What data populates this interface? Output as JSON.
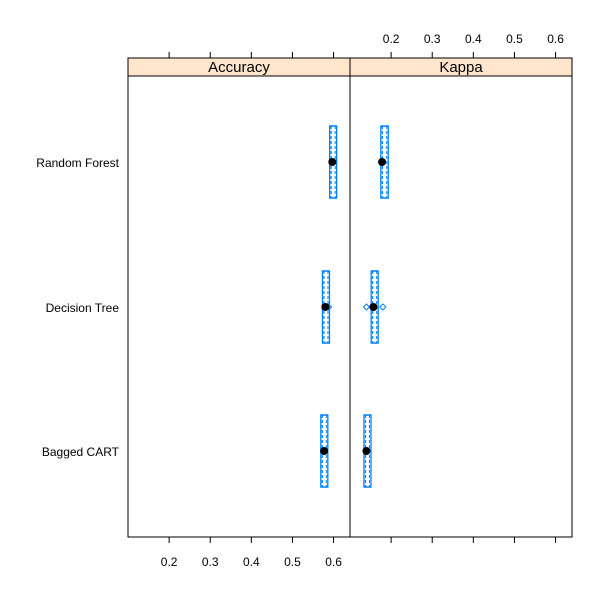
{
  "chart_data": {
    "type": "box-whisker-panels",
    "panels": [
      "Accuracy",
      "Kappa"
    ],
    "categories": [
      "Random Forest",
      "Decision Tree",
      "Bagged CART"
    ],
    "x_ticks": [
      0.2,
      0.3,
      0.4,
      0.5,
      0.6
    ],
    "xlim": [
      0.1,
      0.64
    ],
    "grid": false,
    "strip_color": "#FFE5CC",
    "box_color": "#0080FF",
    "median_color": "#000000",
    "data": {
      "Accuracy": {
        "Random Forest": {
          "whisker_low": 0.595,
          "q1": 0.595,
          "median": 0.597,
          "q3": 0.603,
          "whisker_high": 0.603,
          "outliers": []
        },
        "Decision Tree": {
          "whisker_low": 0.578,
          "q1": 0.578,
          "median": 0.58,
          "q3": 0.585,
          "whisker_high": 0.585,
          "outliers": [
            0.588
          ]
        },
        "Bagged CART": {
          "whisker_low": 0.575,
          "q1": 0.575,
          "median": 0.577,
          "q3": 0.58,
          "whisker_high": 0.58,
          "outliers": []
        }
      },
      "Kappa": {
        "Random Forest": {
          "whisker_low": 0.175,
          "q1": 0.175,
          "median": 0.178,
          "q3": 0.193,
          "whisker_high": 0.193,
          "outliers": []
        },
        "Decision Tree": {
          "whisker_low": 0.155,
          "q1": 0.155,
          "median": 0.157,
          "q3": 0.165,
          "whisker_high": 0.165,
          "outliers": [
            0.14,
            0.18
          ]
        },
        "Bagged CART": {
          "whisker_low": 0.137,
          "q1": 0.137,
          "median": 0.14,
          "q3": 0.148,
          "whisker_high": 0.148,
          "outliers": []
        }
      }
    }
  }
}
